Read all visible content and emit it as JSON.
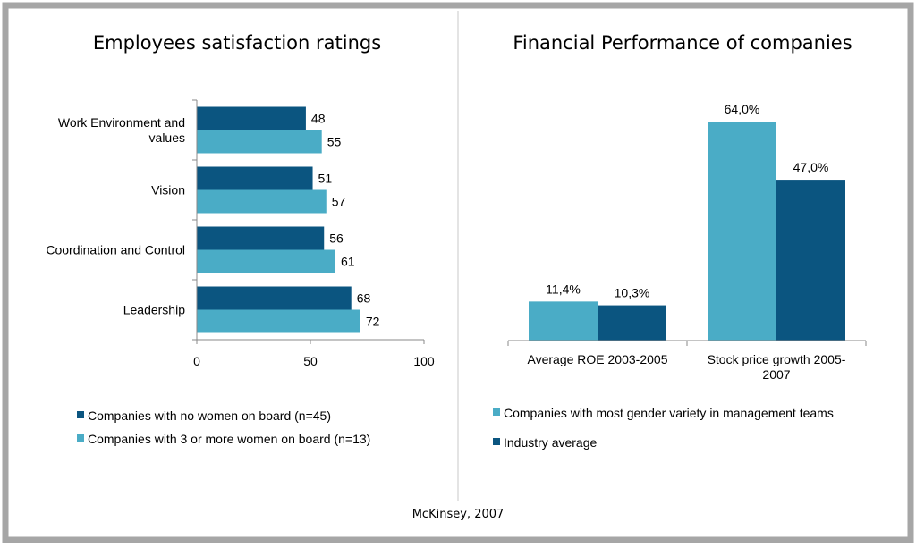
{
  "source": "McKinsey, 2007",
  "chart_data": [
    {
      "type": "bar",
      "orientation": "horizontal",
      "title": "Employees satisfaction ratings",
      "categories": [
        "Work Environment and values",
        "Vision",
        "Coordination and Control",
        "Leadership"
      ],
      "category_lines": [
        [
          "Work Environment and",
          "values"
        ],
        [
          "Vision"
        ],
        [
          "Coordination and Control"
        ],
        [
          "Leadership"
        ]
      ],
      "series": [
        {
          "name": "Companies with no women on board (n=45)",
          "values": [
            48,
            51,
            56,
            68
          ],
          "color": "#0b5580"
        },
        {
          "name": "Companies with 3 or more women on board (n=13)",
          "values": [
            55,
            57,
            61,
            72
          ],
          "color": "#4aacc6"
        }
      ],
      "xlim": [
        0,
        100
      ],
      "xticks": [
        "0",
        "50",
        "100"
      ],
      "grid": false,
      "legend": "bottom"
    },
    {
      "type": "bar",
      "orientation": "vertical",
      "title": "Financial Performance of companies",
      "categories": [
        "Average ROE 2003-2005",
        "Stock price growth 2005-2007"
      ],
      "category_lines": [
        [
          "Average ROE 2003-2005"
        ],
        [
          "Stock price growth 2005-",
          "2007"
        ]
      ],
      "series": [
        {
          "name": "Companies with most gender variety in management teams",
          "values": [
            11.4,
            64.0
          ],
          "labels": [
            "11,4%",
            "64,0%"
          ],
          "color": "#4aacc6"
        },
        {
          "name": "Industry average",
          "values": [
            10.3,
            47.0
          ],
          "labels": [
            "10,3%",
            "47,0%"
          ],
          "color": "#0b5580"
        }
      ],
      "ylim": [
        0,
        64
      ],
      "grid": false,
      "legend": "bottom"
    }
  ]
}
